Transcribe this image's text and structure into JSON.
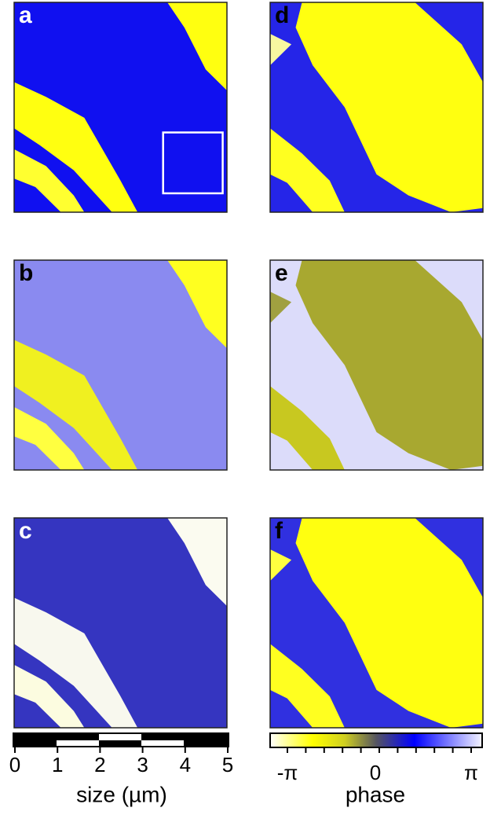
{
  "panels": [
    {
      "label": "a"
    },
    {
      "label": "b"
    },
    {
      "label": "c"
    },
    {
      "label": "d"
    },
    {
      "label": "e"
    },
    {
      "label": "f"
    }
  ],
  "scale_bar": {
    "ticks": [
      "0",
      "1",
      "2",
      "3",
      "4",
      "5"
    ],
    "title": "size (µm)"
  },
  "colorbar": {
    "labels": [
      "-π",
      "0",
      "π"
    ],
    "title": "phase"
  }
}
